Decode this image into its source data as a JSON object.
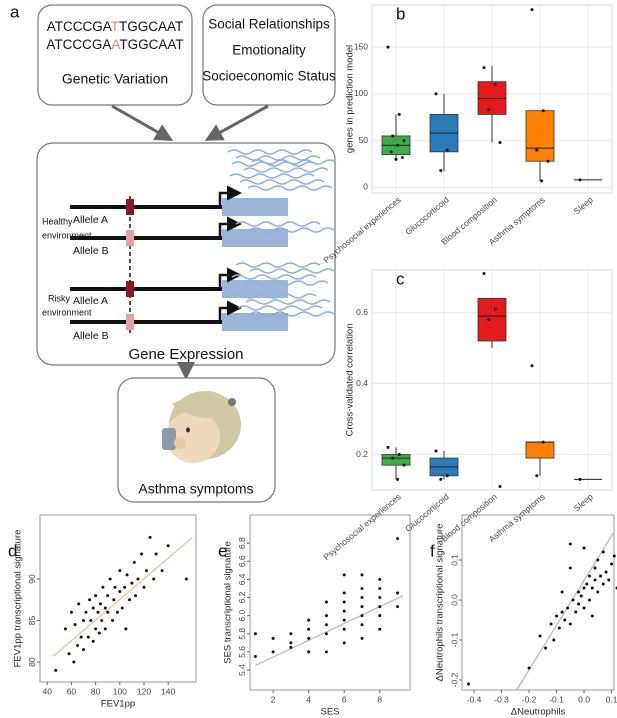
{
  "figure_a": {
    "label": "a",
    "sequences": [
      [
        "ATCCCGA",
        "T",
        "TGGCAAT"
      ],
      [
        "ATCCCGA",
        "A",
        "TGGCAAT"
      ]
    ],
    "genetic_label": "Genetic Variation",
    "environment_factors": [
      "Social Relationships",
      "Emotionality",
      "Socioeconomic Status"
    ],
    "environments": [
      {
        "name": [
          "Healthy",
          "environment"
        ],
        "alleles": [
          "Allele A",
          "Allele B"
        ]
      },
      {
        "name": [
          "Risky",
          "environment"
        ],
        "alleles": [
          "Allele A",
          "Allele B"
        ]
      }
    ],
    "expression_label": "Gene Expression",
    "outcome_label": "Asthma symptoms"
  },
  "chart_data": [
    {
      "type": "box",
      "panel_label": "b",
      "ylabel": "genes in prediction model",
      "categories": [
        "Psychosocial experiences",
        "Glucocorticoid",
        "Blood composition",
        "Asthma symptoms",
        "Sleep"
      ],
      "colors": [
        "#3cae49",
        "#2b7bba",
        "#e41a1c",
        "#ff7f00",
        "#999999"
      ],
      "boxes": [
        {
          "min": 30,
          "q1": 35,
          "median": 45,
          "q3": 55,
          "max": 78,
          "points": [
            150,
            78,
            55,
            50,
            45,
            38,
            32,
            30
          ]
        },
        {
          "min": 17,
          "q1": 38,
          "median": 58,
          "q3": 78,
          "max": 100,
          "points": [
            100,
            40,
            18
          ]
        },
        {
          "min": 48,
          "q1": 78,
          "median": 95,
          "q3": 113,
          "max": 130,
          "points": [
            128,
            110,
            83,
            48
          ]
        },
        {
          "min": 7,
          "q1": 28,
          "median": 42,
          "q3": 82,
          "max": 82,
          "points": [
            190,
            82,
            40,
            28,
            7
          ]
        },
        {
          "min": 8,
          "q1": 8,
          "median": 8,
          "q3": 8,
          "max": 8,
          "points": [
            8
          ]
        }
      ],
      "ylim": [
        -6,
        195
      ],
      "yticks": [
        0,
        50,
        100,
        150
      ],
      "grid": true
    },
    {
      "type": "box",
      "panel_label": "c",
      "ylabel": "Cross-validated correlation",
      "categories": [
        "Psychosocial experiences",
        "Glucocorticoid",
        "Blood composition",
        "Asthma symptoms",
        "Sleep"
      ],
      "colors": [
        "#3cae49",
        "#2b7bba",
        "#e41a1c",
        "#ff7f00",
        "#999999"
      ],
      "boxes": [
        {
          "min": 0.13,
          "q1": 0.17,
          "median": 0.19,
          "q3": 0.2,
          "max": 0.22,
          "points": [
            0.22,
            0.2,
            0.19,
            0.17,
            0.13
          ]
        },
        {
          "min": 0.13,
          "q1": 0.14,
          "median": 0.165,
          "q3": 0.19,
          "max": 0.21,
          "points": [
            0.21,
            0.14,
            0.13
          ]
        },
        {
          "min": 0.5,
          "q1": 0.52,
          "median": 0.59,
          "q3": 0.64,
          "max": 0.64,
          "points": [
            0.71,
            0.61,
            0.58,
            0.11
          ]
        },
        {
          "min": 0.14,
          "q1": 0.19,
          "median": 0.235,
          "q3": 0.235,
          "max": 0.235,
          "points": [
            0.45,
            0.235,
            0.14
          ]
        },
        {
          "min": 0.13,
          "q1": 0.13,
          "median": 0.13,
          "q3": 0.13,
          "max": 0.13,
          "points": [
            0.13
          ]
        }
      ],
      "ylim": [
        0.1,
        0.72
      ],
      "yticks": [
        0.2,
        0.4,
        0.6
      ],
      "grid": true
    },
    {
      "type": "scatter",
      "panel_label": "d",
      "xlabel": "FEV1pp",
      "ylabel": "FEV1pp transcriptional signature",
      "x": [
        47,
        55,
        58,
        60,
        62,
        63,
        65,
        66,
        68,
        70,
        70,
        72,
        74,
        75,
        76,
        78,
        78,
        80,
        80,
        82,
        83,
        84,
        85,
        86,
        88,
        88,
        90,
        90,
        92,
        94,
        95,
        96,
        98,
        100,
        100,
        102,
        104,
        105,
        106,
        108,
        110,
        112,
        113,
        115,
        118,
        120,
        122,
        125,
        128,
        130,
        135,
        140,
        155
      ],
      "y": [
        79,
        84,
        81,
        86,
        80,
        84.5,
        82,
        87,
        83,
        85,
        81.5,
        86,
        83,
        87.5,
        85,
        82.5,
        86.5,
        84,
        88,
        86,
        83.5,
        87,
        85,
        89,
        86.5,
        84,
        88,
        86,
        90,
        85,
        87.5,
        89,
        86,
        88.5,
        91,
        86.5,
        89,
        84,
        90.5,
        87.5,
        89.5,
        92,
        88,
        90,
        93,
        89,
        91,
        95,
        90,
        93,
        91,
        94,
        90
      ],
      "point_color": "#111111",
      "fit": {
        "x": [
          45,
          160
        ],
        "y": [
          80.7,
          95
        ],
        "color": "#e8bf98"
      },
      "xlim": [
        34,
        163
      ],
      "ylim": [
        77.6,
        97.7
      ],
      "xticks": [
        40,
        60,
        80,
        100,
        120,
        140
      ],
      "yticks": [
        80,
        85,
        90
      ]
    },
    {
      "type": "scatter",
      "panel_label": "e",
      "xlabel": "SES",
      "ylabel": "SES transcriptional signature",
      "x": [
        1,
        1,
        2,
        2,
        3,
        3,
        3,
        4,
        4,
        4,
        4,
        5,
        5,
        5,
        5,
        5,
        6,
        6,
        6,
        6,
        6,
        6,
        6,
        7,
        7,
        7,
        7,
        7,
        7,
        7,
        8,
        8,
        8,
        8,
        8,
        8,
        9,
        9,
        9
      ],
      "y": [
        5.55,
        5.8,
        5.6,
        5.75,
        5.65,
        5.7,
        5.8,
        5.6,
        5.85,
        5.95,
        5.75,
        5.6,
        5.8,
        5.9,
        6.0,
        6.15,
        5.7,
        5.85,
        5.95,
        6.05,
        6.15,
        6.25,
        6.45,
        5.75,
        5.9,
        6.0,
        6.1,
        6.2,
        6.3,
        6.45,
        5.85,
        6.0,
        6.1,
        6.2,
        6.3,
        6.4,
        6.1,
        6.25,
        6.85
      ],
      "point_color": "#111111",
      "fit": {
        "x": [
          1,
          9.3
        ],
        "y": [
          5.45,
          6.22
        ],
        "color": "#b8b8b8"
      },
      "xlim": [
        0.7,
        9.7
      ],
      "ylim": [
        5.18,
        7.11
      ],
      "xticks": [
        2,
        4,
        6,
        8
      ],
      "yticks": [
        5.4,
        5.6,
        5.8,
        {
          "value": 6,
          "label": "6.0"
        },
        6.2,
        6.4,
        6.6,
        6.8
      ]
    },
    {
      "type": "scatter",
      "panel_label": "f",
      "xlabel": "ΔNeutrophils",
      "ylabel": "ΔNeutrophils transcriptional signature",
      "x": [
        -0.42,
        -0.2,
        -0.16,
        -0.14,
        -0.12,
        -0.11,
        -0.1,
        -0.09,
        -0.08,
        -0.07,
        -0.06,
        -0.05,
        -0.05,
        -0.04,
        -0.03,
        -0.02,
        -0.02,
        -0.01,
        0,
        0,
        0.01,
        0.02,
        0.02,
        0.03,
        0.04,
        0.04,
        0.05,
        0.05,
        0.06,
        0.07,
        0.07,
        0.08,
        0.09,
        0.1,
        0.11,
        0.12,
        -0.05,
        0,
        0.03,
        -0.08
      ],
      "y": [
        -0.21,
        -0.17,
        -0.09,
        -0.12,
        -0.06,
        -0.1,
        -0.04,
        -0.07,
        -0.03,
        -0.05,
        -0.02,
        0.14,
        -0.06,
        0,
        -0.03,
        0.02,
        -0.01,
        0.01,
        0.03,
        -0.02,
        0.04,
        0,
        0.06,
        0.03,
        0.05,
        0.08,
        0.02,
        0.1,
        0.06,
        0.04,
        0.12,
        0.07,
        0.05,
        0.09,
        0.11,
        0.03,
        0.08,
        0.13,
        -0.04,
        0.02
      ],
      "point_color": "#111111",
      "fit": {
        "x": [
          -0.245,
          0.109
        ],
        "y": [
          -0.225,
          0.17
        ],
        "color": "#b8b8b8"
      },
      "xlim": [
        -0.444,
        0.109
      ],
      "ylim": [
        -0.225,
        0.2125
      ],
      "xticks": [
        -0.4,
        -0.3,
        -0.2,
        -0.1,
        {
          "value": 0,
          "label": "0.0"
        },
        0.1
      ],
      "yticks": [
        -0.2,
        -0.1,
        {
          "value": 0,
          "label": "0.0"
        },
        0.1
      ]
    }
  ]
}
